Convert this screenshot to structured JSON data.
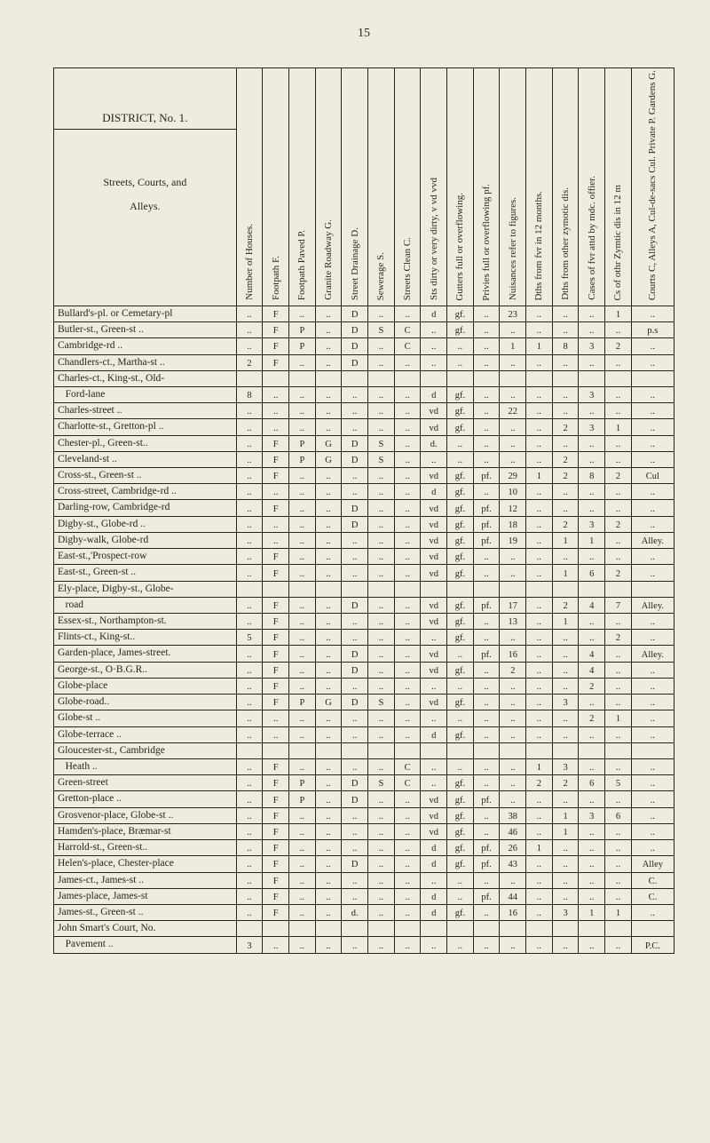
{
  "page_number": "15",
  "district_header": {
    "title": "DISTRICT, No. 1.",
    "sub1": "Streets, Courts, and",
    "sub2": "Alleys."
  },
  "columns": [
    "Number of Houses.",
    "Footpath F.",
    "Footpath Paved P.",
    "Granite Roadway G.",
    "Street Drainage D.",
    "Sewerage S.",
    "Streets Clean C.",
    "Sts dirty or very dirty, v vd vvd",
    "Gutters full or overflowing.",
    "Privies full or overflowing pf.",
    "Nuisances refer to figures.",
    "Dths from fvr in 12 months.",
    "Dths from other zymotic dis.",
    "Cases of fvr attd by mdc. offier.",
    "Cs of othr Zymtic dis in 12 m",
    "Courts C, Alleys A, Cul-de-sacs Cul. Private P. Gardens G."
  ],
  "rows": [
    {
      "street": "Bullard's-pl. or Cemetary-pl",
      "cells": [
        "..",
        "F",
        "..",
        "..",
        "D",
        "..",
        "..",
        "d",
        "gf.",
        "..",
        "23",
        "..",
        "..",
        "..",
        "1",
        ".."
      ]
    },
    {
      "street": "Butler-st., Green-st ..",
      "cells": [
        "..",
        "F",
        "P",
        "..",
        "D",
        "S",
        "C",
        "..",
        "gf.",
        "..",
        "..",
        "..",
        "..",
        "..",
        "..",
        "p.s"
      ]
    },
    {
      "street": "Cambridge-rd ..",
      "cells": [
        "..",
        "F",
        "P",
        "..",
        "D",
        "..",
        "C",
        "..",
        "..",
        "..",
        "1",
        "1",
        "8",
        "3",
        "2",
        ".."
      ]
    },
    {
      "street": "Chandlers-ct., Martha-st ..",
      "cells": [
        "2",
        "F",
        "..",
        "..",
        "D",
        "..",
        "..",
        "..",
        "..",
        "..",
        "..",
        "..",
        "..",
        "..",
        "..",
        ".."
      ]
    },
    {
      "street": "Charles-ct., King-st., Old-",
      "cells": [
        "",
        "",
        "",
        "",
        "",
        "",
        "",
        "",
        "",
        "",
        "",
        "",
        "",
        "",
        "",
        ""
      ]
    },
    {
      "street": "  Ford-lane",
      "cells": [
        "8",
        "..",
        "..",
        "..",
        "..",
        "..",
        "..",
        "d",
        "gf.",
        "..",
        "..",
        "..",
        "..",
        "3",
        "..",
        ".."
      ]
    },
    {
      "street": "Charles-street ..",
      "cells": [
        "..",
        "..",
        "..",
        "..",
        "..",
        "..",
        "..",
        "vd",
        "gf.",
        "..",
        "22",
        "..",
        "..",
        "..",
        "..",
        ".."
      ]
    },
    {
      "street": "Charlotte-st., Gretton-pl ..",
      "cells": [
        "..",
        "..",
        "..",
        "..",
        "..",
        "..",
        "..",
        "vd",
        "gf.",
        "..",
        "..",
        "..",
        "2",
        "3",
        "1",
        ".."
      ]
    },
    {
      "street": "Chester-pl., Green-st..",
      "cells": [
        "..",
        "F",
        "P",
        "G",
        "D",
        "S",
        "..",
        "d.",
        "..",
        "..",
        "..",
        "..",
        "..",
        "..",
        "..",
        ".."
      ]
    },
    {
      "street": "Cleveland-st ..",
      "cells": [
        "..",
        "F",
        "P",
        "G",
        "D",
        "S",
        "..",
        "..",
        "..",
        "..",
        "..",
        "..",
        "2",
        "..",
        "..",
        ".."
      ]
    },
    {
      "street": "Cross-st., Green-st ..",
      "cells": [
        "..",
        "F",
        "..",
        "..",
        "..",
        "..",
        "..",
        "vd",
        "gf.",
        "pf.",
        "29",
        "1",
        "2",
        "8",
        "2",
        "Cul"
      ]
    },
    {
      "street": "Cross-street, Cambridge-rd ..",
      "cells": [
        "..",
        "..",
        "..",
        "..",
        "..",
        "..",
        "..",
        "d",
        "gf.",
        "..",
        "10",
        "..",
        "..",
        "..",
        "..",
        ".."
      ]
    },
    {
      "street": "Darling-row, Cambridge-rd",
      "cells": [
        "..",
        "F",
        "..",
        "..",
        "D",
        "..",
        "..",
        "vd",
        "gf.",
        "pf.",
        "12",
        "..",
        "..",
        "..",
        "..",
        ".."
      ]
    },
    {
      "street": "Digby-st., Globe-rd ..",
      "cells": [
        "..",
        "..",
        "..",
        "..",
        "D",
        "..",
        "..",
        "vd",
        "gf.",
        "pf.",
        "18",
        "..",
        "2",
        "3",
        "2",
        ".."
      ]
    },
    {
      "street": "Digby-walk, Globe-rd",
      "cells": [
        "..",
        "..",
        "..",
        "..",
        "..",
        "..",
        "..",
        "vd",
        "gf.",
        "pf.",
        "19",
        "..",
        "1",
        "1",
        "..",
        "Alley."
      ]
    },
    {
      "street": "East-st.,'Prospect-row",
      "cells": [
        "..",
        "F",
        "..",
        "..",
        "..",
        "..",
        "..",
        "vd",
        "gf.",
        "..",
        "..",
        "..",
        "..",
        "..",
        "..",
        ".."
      ]
    },
    {
      "street": "East-st., Green-st ..",
      "cells": [
        "..",
        "F",
        "..",
        "..",
        "..",
        "..",
        "..",
        "vd",
        "gf.",
        "..",
        "..",
        "..",
        "1",
        "6",
        "2",
        ".."
      ]
    },
    {
      "street": "Ely-place, Digby-st., Globe-",
      "cells": [
        "",
        "",
        "",
        "",
        "",
        "",
        "",
        "",
        "",
        "",
        "",
        "",
        "",
        "",
        "",
        ""
      ]
    },
    {
      "street": "  road",
      "cells": [
        "..",
        "F",
        "..",
        "..",
        "D",
        "..",
        "..",
        "vd",
        "gf.",
        "pf.",
        "17",
        "..",
        "2",
        "4",
        "7",
        "Alley."
      ]
    },
    {
      "street": "Essex-st., Northampton-st.",
      "cells": [
        "..",
        "F",
        "..",
        "..",
        "..",
        "..",
        "..",
        "vd",
        "gf.",
        "..",
        "13",
        "..",
        "1",
        "..",
        "..",
        ".."
      ]
    },
    {
      "street": "Flints-ct., King-st..",
      "cells": [
        "5",
        "F",
        "..",
        "..",
        "..",
        "..",
        "..",
        "..",
        "gf.",
        "..",
        "..",
        "..",
        "..",
        "..",
        "2",
        ".."
      ]
    },
    {
      "street": "Garden-place, James-street.",
      "cells": [
        "..",
        "F",
        "..",
        "..",
        "D",
        "..",
        "..",
        "vd",
        "..",
        "pf.",
        "16",
        "..",
        "..",
        "4",
        "..",
        "Alley."
      ]
    },
    {
      "street": "George-st., O·B.G.R..",
      "cells": [
        "..",
        "F",
        "..",
        "..",
        "D",
        "..",
        "..",
        "vd",
        "gf.",
        "..",
        "2",
        "..",
        "..",
        "4",
        "..",
        ".."
      ]
    },
    {
      "street": "Globe-place",
      "cells": [
        "..",
        "F",
        "..",
        "..",
        "..",
        "..",
        "..",
        "..",
        "..",
        "..",
        "..",
        "..",
        "..",
        "2",
        "..",
        ".."
      ]
    },
    {
      "street": "Globe-road..",
      "cells": [
        "..",
        "F",
        "P",
        "G",
        "D",
        "S",
        "..",
        "vd",
        "gf.",
        "..",
        "..",
        "..",
        "3",
        "..",
        "..",
        ".."
      ]
    },
    {
      "street": "Globe-st ..",
      "cells": [
        "..",
        "..",
        "..",
        "..",
        "..",
        "..",
        "..",
        "..",
        "..",
        "..",
        "..",
        "..",
        "..",
        "2",
        "1",
        ".."
      ]
    },
    {
      "street": "Globe-terrace ..",
      "cells": [
        "..",
        "..",
        "..",
        "..",
        "..",
        "..",
        "..",
        "d",
        "gf.",
        "..",
        "..",
        "..",
        "..",
        "..",
        "..",
        ".."
      ]
    },
    {
      "street": "Gloucester-st., Cambridge",
      "cells": [
        "",
        "",
        "",
        "",
        "",
        "",
        "",
        "",
        "",
        "",
        "",
        "",
        "",
        "",
        "",
        ""
      ]
    },
    {
      "street": "  Heath ..",
      "cells": [
        "..",
        "F",
        "..",
        "..",
        "..",
        "..",
        "C",
        "..",
        "..",
        "..",
        "..",
        "1",
        "3",
        "..",
        "..",
        ".."
      ]
    },
    {
      "street": "Green-street",
      "cells": [
        "..",
        "F",
        "P",
        "..",
        "D",
        "S",
        "C",
        "..",
        "gf.",
        "..",
        "..",
        "2",
        "2",
        "6",
        "5",
        ".."
      ]
    },
    {
      "street": "Gretton-place ..",
      "cells": [
        "..",
        "F",
        "P",
        "..",
        "D",
        "..",
        "..",
        "vd",
        "gf.",
        "pf.",
        "..",
        "..",
        "..",
        "..",
        "..",
        ".."
      ]
    },
    {
      "street": "Grosvenor-place, Globe-st ..",
      "cells": [
        "..",
        "F",
        "..",
        "..",
        "..",
        "..",
        "..",
        "vd",
        "gf.",
        "..",
        "38",
        "..",
        "1",
        "3",
        "6",
        ".."
      ]
    },
    {
      "street": "Hamden's-place, Bræmar-st",
      "cells": [
        "..",
        "F",
        "..",
        "..",
        "..",
        "..",
        "..",
        "vd",
        "gf.",
        "..",
        "46",
        "..",
        "1",
        "..",
        "..",
        ".."
      ]
    },
    {
      "street": "Harrold-st., Green-st..",
      "cells": [
        "..",
        "F",
        "..",
        "..",
        "..",
        "..",
        "..",
        "d",
        "gf.",
        "pf.",
        "26",
        "1",
        "..",
        "..",
        "..",
        ".."
      ]
    },
    {
      "street": "Helen's-place, Chester-place",
      "cells": [
        "..",
        "F",
        "..",
        "..",
        "D",
        "..",
        "..",
        "d",
        "gf.",
        "pf.",
        "43",
        "..",
        "..",
        "..",
        "..",
        "Alley"
      ]
    },
    {
      "street": "James-ct., James-st ..",
      "cells": [
        "..",
        "F",
        "..",
        "..",
        "..",
        "..",
        "..",
        "..",
        "..",
        "..",
        "..",
        "..",
        "..",
        "..",
        "..",
        "C."
      ]
    },
    {
      "street": "James-place, James-st",
      "cells": [
        "..",
        "F",
        "..",
        "..",
        "..",
        "..",
        "..",
        "d",
        "..",
        "pf.",
        "44",
        "..",
        "..",
        "..",
        "..",
        "C."
      ]
    },
    {
      "street": "James-st., Green-st ..",
      "cells": [
        "..",
        "F",
        "..",
        "..",
        "d.",
        "..",
        "..",
        "d",
        "gf.",
        "..",
        "16",
        "..",
        "3",
        "1",
        "1",
        ".."
      ]
    },
    {
      "street": "John Smart's Court, No.",
      "cells": [
        "",
        "",
        "",
        "",
        "",
        "",
        "",
        "",
        "",
        "",
        "",
        "",
        "",
        "",
        "",
        ""
      ]
    },
    {
      "street": "  Pavement ..",
      "cells": [
        "3",
        "..",
        "..",
        "..",
        "..",
        "..",
        "..",
        "..",
        "..",
        "..",
        "..",
        "..",
        "..",
        "..",
        "..",
        "P.C."
      ]
    }
  ]
}
